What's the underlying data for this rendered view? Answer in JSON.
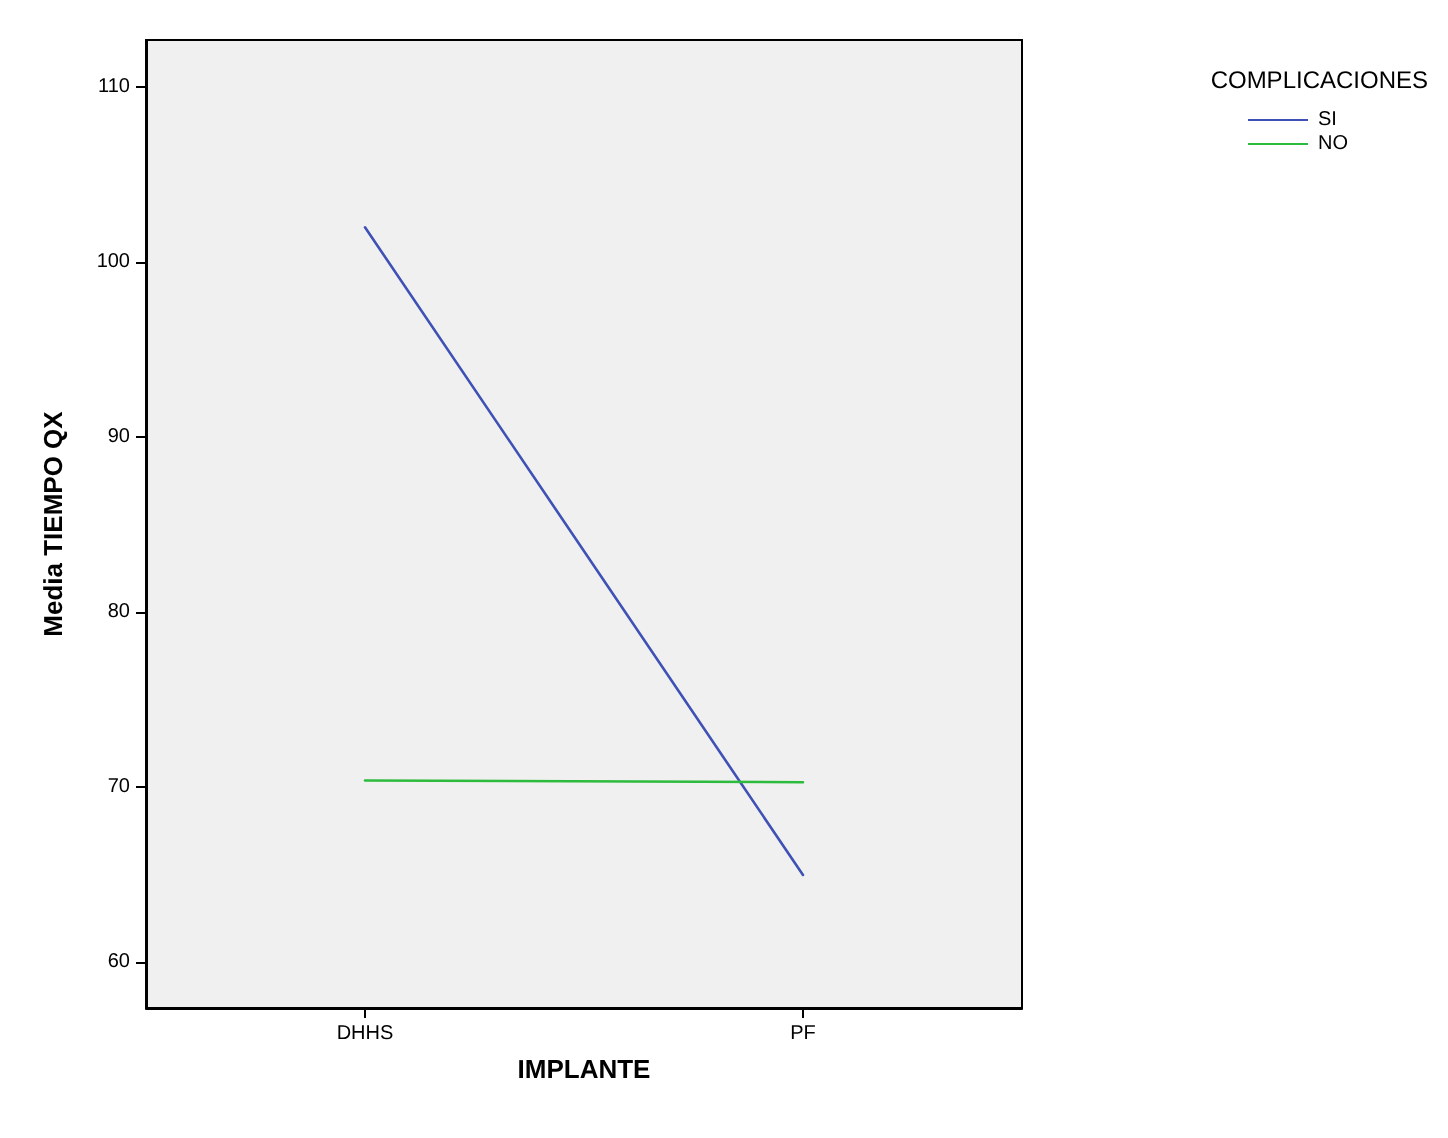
{
  "chart_data": {
    "type": "line",
    "xlabel": "IMPLANTE",
    "ylabel": "Media TIEMPO QX",
    "legend_title": "COMPLICACIONES",
    "categories": [
      "DHHS",
      "PF"
    ],
    "series": [
      {
        "name": "SI",
        "color": "#3f51b5",
        "values": [
          102.0,
          65.0
        ]
      },
      {
        "name": "NO",
        "color": "#2cbb3c",
        "values": [
          70.4,
          70.3
        ]
      }
    ],
    "ylim": [
      57.4,
      112.7
    ],
    "yticks": [
      60,
      70,
      80,
      90,
      100,
      110
    ],
    "grid": false,
    "legend": "top right",
    "marker": "none",
    "line_style": "solid"
  }
}
